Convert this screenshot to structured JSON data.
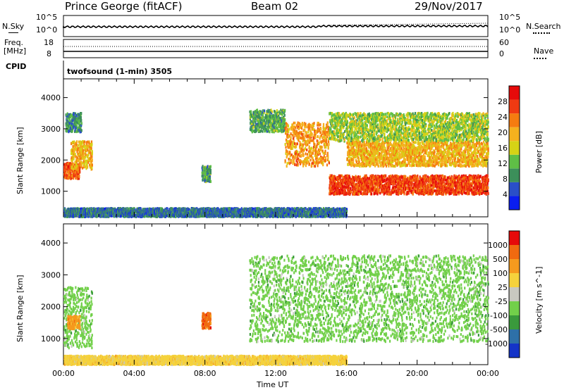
{
  "header": {
    "station": "Prince George (fitACF)",
    "beam": "Beam 02",
    "date": "29/Nov/2017"
  },
  "top_panels": {
    "nsky_label": "N.Sky",
    "nsearch_label": "N.Search",
    "nsky_ticks": [
      "10^5",
      "10^0"
    ],
    "nsearch_ticks": [
      "10^5",
      "10^0"
    ],
    "freq_label_1": "Freq.",
    "freq_label_2": "[MHz]",
    "freq_ticks": [
      "18",
      "8"
    ],
    "nave_label": "Nave",
    "nave_ticks": [
      "60",
      "0"
    ],
    "cpid_label": "CPID",
    "cpid_text": "twofsound (1-min) 3505"
  },
  "chart_data": [
    {
      "type": "heatmap",
      "name": "power-panel",
      "ylabel": "Slant Range [km]",
      "ylim": [
        180,
        4600
      ],
      "yticks": [
        1000,
        2000,
        3000,
        4000
      ],
      "xlim_hours": [
        0,
        24
      ],
      "colorbar_label": "Power [dB]",
      "colorbar_ticks": [
        4,
        8,
        12,
        16,
        20,
        24,
        28
      ],
      "colorbar_range": [
        0,
        32
      ],
      "colors": [
        "#0a1ef0",
        "#2a4fc8",
        "#3c8f5a",
        "#5fbf46",
        "#d6d316",
        "#f5b11e",
        "#f57c10",
        "#ef3a12",
        "#e60a0a"
      ],
      "features": [
        {
          "t0": 0.0,
          "t1": 0.9,
          "r0": 1400,
          "r1": 1900,
          "level": 26
        },
        {
          "t0": 0.4,
          "t1": 1.6,
          "r0": 1700,
          "r1": 2600,
          "level": 20
        },
        {
          "t0": 0.1,
          "t1": 1.0,
          "r0": 2900,
          "r1": 3500,
          "level": 8
        },
        {
          "t0": 7.8,
          "t1": 8.3,
          "r0": 1300,
          "r1": 1800,
          "level": 10
        },
        {
          "t0": 10.5,
          "t1": 12.5,
          "r0": 2900,
          "r1": 3600,
          "level": 10
        },
        {
          "t0": 12.5,
          "t1": 15.0,
          "r0": 1800,
          "r1": 3200,
          "level": 22
        },
        {
          "t0": 15.0,
          "t1": 24.0,
          "r0": 900,
          "r1": 1500,
          "level": 28
        },
        {
          "t0": 16.0,
          "t1": 24.0,
          "r0": 1800,
          "r1": 2600,
          "level": 20
        },
        {
          "t0": 15.0,
          "t1": 24.0,
          "r0": 2600,
          "r1": 3500,
          "level": 14
        },
        {
          "t0": 0.0,
          "t1": 16.0,
          "r0": 180,
          "r1": 450,
          "level": 6
        }
      ]
    },
    {
      "type": "heatmap",
      "name": "velocity-panel",
      "ylabel": "Slant Range [km]",
      "ylim": [
        180,
        4600
      ],
      "yticks": [
        1000,
        2000,
        3000,
        4000
      ],
      "xlim_hours": [
        0,
        24
      ],
      "colorbar_label": "Velocity [m s^-1]",
      "colorbar_ticks": [
        "1000",
        "500",
        "100",
        "25",
        "-25",
        "-100",
        "-500",
        "-1000"
      ],
      "colors": [
        "#1434c8",
        "#2e70a8",
        "#3a9a3c",
        "#72d04a",
        "#c8c8c0",
        "#f5d23c",
        "#f59a1e",
        "#f06a10",
        "#e60a0a"
      ],
      "features": [
        {
          "t0": 0.0,
          "t1": 1.6,
          "r0": 700,
          "r1": 2600,
          "level": "25"
        },
        {
          "t0": 0.2,
          "t1": 0.9,
          "r0": 1300,
          "r1": 1700,
          "level": "-100"
        },
        {
          "t0": 7.8,
          "t1": 8.3,
          "r0": 1300,
          "r1": 1800,
          "level": "-500"
        },
        {
          "t0": 10.5,
          "t1": 24.0,
          "r0": 900,
          "r1": 3600,
          "level": "25"
        },
        {
          "t0": 0.0,
          "t1": 16.0,
          "r0": 180,
          "r1": 450,
          "level": "-25"
        }
      ]
    }
  ],
  "time_axis": {
    "ticks": [
      "00:00",
      "04:00",
      "08:00",
      "12:00",
      "16:00",
      "20:00",
      "00:00"
    ],
    "xlabel": "Time UT"
  }
}
